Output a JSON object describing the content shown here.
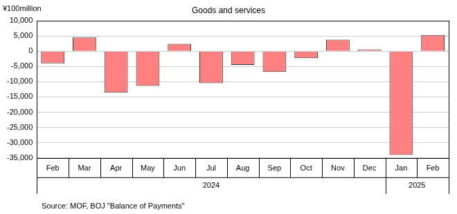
{
  "chart_data": {
    "type": "bar",
    "title": "Goods and services",
    "y_label": "¥100million",
    "source": "Source: MOF, BOJ \"Balance of Payments\"",
    "categories": [
      "Feb",
      "Mar",
      "Apr",
      "May",
      "Jun",
      "Jul",
      "Aug",
      "Sep",
      "Oct",
      "Nov",
      "Dec",
      "Jan",
      "Feb"
    ],
    "x_groups": [
      {
        "label": "2024",
        "count": 11
      },
      {
        "label": "2025",
        "count": 2
      }
    ],
    "values": [
      -4000,
      4500,
      -13600,
      -11400,
      2400,
      -10500,
      -4500,
      -6800,
      -2300,
      3800,
      600,
      -34000,
      5300
    ],
    "color": "#ff8080",
    "ylim": [
      -35000,
      10000
    ],
    "yticks": [
      {
        "value": -35000,
        "label": "-35,000"
      },
      {
        "value": -30000,
        "label": "-30,000"
      },
      {
        "value": -25000,
        "label": "-25,000"
      },
      {
        "value": -20000,
        "label": "-20,000"
      },
      {
        "value": -15000,
        "label": "-15,000"
      },
      {
        "value": -10000,
        "label": "-10,000"
      },
      {
        "value": -5000,
        "label": "-5,000"
      },
      0,
      {
        "value": 5000,
        "label": "5,000"
      },
      {
        "value": 10000,
        "label": "10,000"
      }
    ],
    "grid": true
  }
}
